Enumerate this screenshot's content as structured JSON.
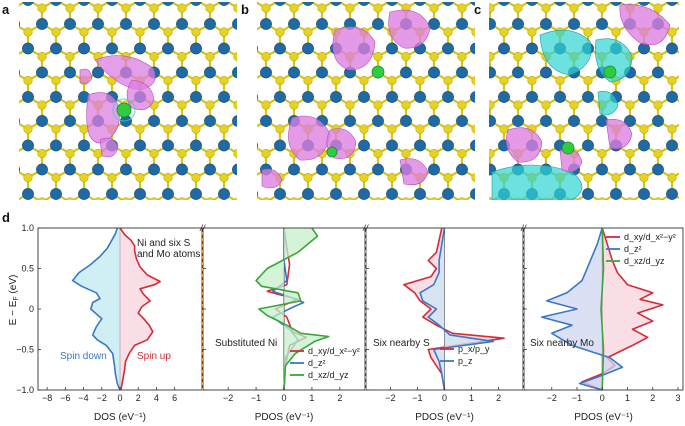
{
  "panel_labels": {
    "a": "a",
    "b": "b",
    "c": "c",
    "d": "d"
  },
  "colors": {
    "bg": "#ffffff",
    "mo": "#1f6aa5",
    "s": "#e7d31e",
    "ni": "#2ecc40",
    "charge_pos": "#dc7ee0",
    "charge_neg": "#2fd3d3",
    "red": "#d62b37",
    "blue": "#3a78c4",
    "green": "#3aa53a",
    "dashed_orange": "#f0a04b"
  },
  "d_panel": {
    "y_axis_label": "E − E_F (eV)",
    "y_ticks": [
      "1.0",
      "0.5",
      "0",
      "−0.5",
      "−1.0"
    ],
    "subplots": [
      {
        "xlabel": "DOS (eV⁻¹)",
        "x_ticks": [
          "−8",
          "−6",
          "−4",
          "−2",
          "0",
          "2",
          "4",
          "6"
        ],
        "annotations": [
          "Ni and six S",
          "and Mo atoms"
        ],
        "spin_down_label": "Spin down",
        "spin_up_label": "Spin up"
      },
      {
        "xlabel": "PDOS (eV⁻¹)",
        "x_ticks": [
          "−2",
          "−1",
          "0",
          "1",
          "2"
        ],
        "annotation": "Substituted Ni",
        "legend": [
          "d_xy/d_x²−y²",
          "d_z²",
          "d_xz/d_yz"
        ]
      },
      {
        "xlabel": "PDOS (eV⁻¹)",
        "x_ticks": [
          "−2",
          "−1",
          "0",
          "1",
          "2"
        ],
        "annotation": "Six nearby S",
        "legend": [
          "p_x/p_y",
          "p_z"
        ]
      },
      {
        "xlabel": "PDOS (eV⁻¹)",
        "x_ticks": [
          "−2",
          "−1",
          "0",
          "1",
          "2",
          "3"
        ],
        "annotation": "Six nearby Mo",
        "legend": [
          "d_xy/d_x²−y²",
          "d_z²",
          "d_xz/d_yz"
        ]
      }
    ]
  },
  "chart_data": [
    {
      "type": "line",
      "title": "",
      "xlabel": "DOS (eV⁻¹)",
      "ylabel": "E − E_F (eV)",
      "xlim": [
        -9,
        9
      ],
      "ylim": [
        -1.0,
        1.0
      ],
      "series": [
        {
          "name": "Spin down",
          "color": "#3a78c4",
          "fill": "#bfeaf2",
          "points": [
            [
              0,
              -1.0
            ],
            [
              -0.3,
              -0.92
            ],
            [
              -0.5,
              -0.8
            ],
            [
              -0.6,
              -0.7
            ],
            [
              -0.8,
              -0.55
            ],
            [
              -1.5,
              -0.45
            ],
            [
              -2.5,
              -0.38
            ],
            [
              -3.0,
              -0.32
            ],
            [
              -2.6,
              -0.22
            ],
            [
              -2.0,
              -0.12
            ],
            [
              -2.7,
              -0.05
            ],
            [
              -3.2,
              0.0
            ],
            [
              -3.0,
              0.08
            ],
            [
              -2.2,
              0.13
            ],
            [
              -2.6,
              0.2
            ],
            [
              -4.2,
              0.28
            ],
            [
              -5.2,
              0.35
            ],
            [
              -4.5,
              0.45
            ],
            [
              -3.2,
              0.55
            ],
            [
              -2.2,
              0.65
            ],
            [
              -1.4,
              0.75
            ],
            [
              -0.9,
              0.85
            ],
            [
              -0.5,
              0.93
            ],
            [
              -0.3,
              1.0
            ]
          ]
        },
        {
          "name": "Spin up",
          "color": "#d62b37",
          "fill": "#f8d3dc",
          "points": [
            [
              0,
              1.0
            ],
            [
              0.5,
              0.92
            ],
            [
              1.2,
              0.85
            ],
            [
              1.6,
              0.78
            ],
            [
              1.6,
              0.72
            ],
            [
              1.8,
              0.62
            ],
            [
              2.2,
              0.52
            ],
            [
              3.0,
              0.42
            ],
            [
              4.4,
              0.34
            ],
            [
              3.8,
              0.3
            ],
            [
              2.2,
              0.25
            ],
            [
              2.6,
              0.18
            ],
            [
              3.3,
              0.1
            ],
            [
              2.4,
              0.03
            ],
            [
              2.0,
              -0.05
            ],
            [
              2.6,
              -0.12
            ],
            [
              3.2,
              -0.2
            ],
            [
              3.6,
              -0.28
            ],
            [
              3.0,
              -0.38
            ],
            [
              1.6,
              -0.45
            ],
            [
              1.0,
              -0.55
            ],
            [
              0.6,
              -0.65
            ],
            [
              0.5,
              -0.75
            ],
            [
              0.3,
              -0.88
            ],
            [
              0.1,
              -1.0
            ]
          ]
        }
      ]
    },
    {
      "type": "line",
      "title": "",
      "xlabel": "PDOS (eV⁻¹)",
      "ylabel": "",
      "xlim": [
        -2.9,
        2.9
      ],
      "ylim": [
        -1.0,
        1.0
      ],
      "series": [
        {
          "name": "d_xy/d_x²−y²",
          "color": "#d62b37",
          "points": [
            [
              0,
              -1.0
            ],
            [
              0.05,
              -0.7
            ],
            [
              0.2,
              -0.45
            ],
            [
              0.8,
              -0.35
            ],
            [
              0.3,
              -0.28
            ],
            [
              0.1,
              -0.1
            ],
            [
              -0.3,
              0.0
            ],
            [
              0.2,
              0.08
            ],
            [
              0.5,
              0.12
            ],
            [
              -0.2,
              0.18
            ],
            [
              -0.6,
              0.22
            ],
            [
              0.1,
              0.3
            ],
            [
              0.2,
              0.55
            ],
            [
              0.1,
              0.75
            ],
            [
              0,
              1.0
            ]
          ]
        },
        {
          "name": "d_z²",
          "color": "#3a78c4",
          "points": [
            [
              0,
              -1.0
            ],
            [
              0.05,
              -0.6
            ],
            [
              0.5,
              -0.38
            ],
            [
              0.2,
              -0.25
            ],
            [
              -0.4,
              -0.1
            ],
            [
              0.3,
              0.02
            ],
            [
              0.7,
              0.08
            ],
            [
              0.2,
              0.15
            ],
            [
              -0.4,
              0.22
            ],
            [
              0.1,
              0.35
            ],
            [
              0,
              0.6
            ],
            [
              0,
              1.0
            ]
          ]
        },
        {
          "name": "d_xz/d_yz",
          "color": "#3aa53a",
          "fill": "#c6efc9",
          "points": [
            [
              0,
              -1.0
            ],
            [
              0.05,
              -0.7
            ],
            [
              0.4,
              -0.55
            ],
            [
              1.1,
              -0.4
            ],
            [
              1.6,
              -0.34
            ],
            [
              0.6,
              -0.3
            ],
            [
              0.1,
              -0.2
            ],
            [
              -0.6,
              -0.08
            ],
            [
              -0.9,
              0.0
            ],
            [
              0.6,
              0.1
            ],
            [
              0.5,
              0.2
            ],
            [
              -0.8,
              0.28
            ],
            [
              -1.0,
              0.35
            ],
            [
              -0.6,
              0.5
            ],
            [
              0.5,
              0.7
            ],
            [
              1.2,
              0.9
            ],
            [
              1.0,
              1.0
            ]
          ]
        }
      ]
    },
    {
      "type": "line",
      "title": "",
      "xlabel": "PDOS (eV⁻¹)",
      "ylabel": "",
      "xlim": [
        -2.9,
        2.9
      ],
      "ylim": [
        -1.0,
        1.0
      ],
      "series": [
        {
          "name": "p_x/p_y",
          "color": "#d62b37",
          "fill": "#f8d3dc",
          "points": [
            [
              0,
              -1.0
            ],
            [
              -0.1,
              -0.8
            ],
            [
              -0.3,
              -0.7
            ],
            [
              -0.5,
              -0.6
            ],
            [
              -0.6,
              -0.5
            ],
            [
              2.2,
              -0.36
            ],
            [
              0.3,
              -0.3
            ],
            [
              -0.3,
              -0.2
            ],
            [
              -0.8,
              -0.1
            ],
            [
              -0.5,
              0.0
            ],
            [
              -0.9,
              0.1
            ],
            [
              -1.1,
              0.2
            ],
            [
              -1.5,
              0.3
            ],
            [
              -0.5,
              0.4
            ],
            [
              -0.3,
              0.5
            ],
            [
              -0.6,
              0.6
            ],
            [
              -0.3,
              0.7
            ],
            [
              -0.2,
              0.85
            ],
            [
              -0.1,
              1.0
            ]
          ]
        },
        {
          "name": "p_z",
          "color": "#3a78c4",
          "fill": "#cde6f7",
          "points": [
            [
              0,
              -1.0
            ],
            [
              -0.1,
              -0.8
            ],
            [
              -0.2,
              -0.65
            ],
            [
              -0.4,
              -0.5
            ],
            [
              1.8,
              -0.4
            ],
            [
              0.2,
              -0.32
            ],
            [
              -0.2,
              -0.2
            ],
            [
              -0.6,
              -0.1
            ],
            [
              -0.3,
              0.0
            ],
            [
              -0.8,
              0.1
            ],
            [
              -0.9,
              0.2
            ],
            [
              -0.4,
              0.3
            ],
            [
              -0.2,
              0.45
            ],
            [
              -0.2,
              0.6
            ],
            [
              -0.1,
              0.8
            ],
            [
              0,
              1.0
            ]
          ]
        }
      ]
    },
    {
      "type": "line",
      "title": "",
      "xlabel": "PDOS (eV⁻¹)",
      "ylabel": "",
      "xlim": [
        -3.1,
        3.2
      ],
      "ylim": [
        -1.0,
        1.0
      ],
      "series": [
        {
          "name": "d_xy/d_x²−y²",
          "color": "#d62b37",
          "fill": "#f8d3dc",
          "points": [
            [
              0,
              -1.0
            ],
            [
              -0.8,
              -0.9
            ],
            [
              0,
              -0.8
            ],
            [
              0.5,
              -0.7
            ],
            [
              0.2,
              -0.6
            ],
            [
              1.2,
              -0.45
            ],
            [
              1.8,
              -0.35
            ],
            [
              1.2,
              -0.25
            ],
            [
              2.0,
              -0.15
            ],
            [
              1.4,
              -0.05
            ],
            [
              2.4,
              0.05
            ],
            [
              1.5,
              0.12
            ],
            [
              2.0,
              0.2
            ],
            [
              1.0,
              0.3
            ],
            [
              0.6,
              0.45
            ],
            [
              0.4,
              0.6
            ],
            [
              0.2,
              0.8
            ],
            [
              0,
              1.0
            ]
          ]
        },
        {
          "name": "d_z²",
          "color": "#3a78c4",
          "fill": "#cfd6f2",
          "points": [
            [
              0,
              -1.0
            ],
            [
              -0.9,
              -0.92
            ],
            [
              0,
              -0.82
            ],
            [
              0.8,
              -0.72
            ],
            [
              0.3,
              -0.6
            ],
            [
              -1.2,
              -0.45
            ],
            [
              -2.0,
              -0.3
            ],
            [
              -1.2,
              -0.2
            ],
            [
              -2.4,
              -0.1
            ],
            [
              -1.0,
              0.0
            ],
            [
              -2.2,
              0.1
            ],
            [
              -1.4,
              0.2
            ],
            [
              -0.8,
              0.35
            ],
            [
              -0.6,
              0.5
            ],
            [
              -0.4,
              0.65
            ],
            [
              -0.2,
              0.8
            ],
            [
              0,
              1.0
            ]
          ]
        },
        {
          "name": "d_xz/d_yz",
          "color": "#3aa53a",
          "points": [
            [
              0,
              -1.0
            ],
            [
              0.05,
              -0.5
            ],
            [
              -0.05,
              0
            ],
            [
              0.05,
              0.5
            ],
            [
              0,
              1.0
            ]
          ]
        }
      ]
    }
  ]
}
